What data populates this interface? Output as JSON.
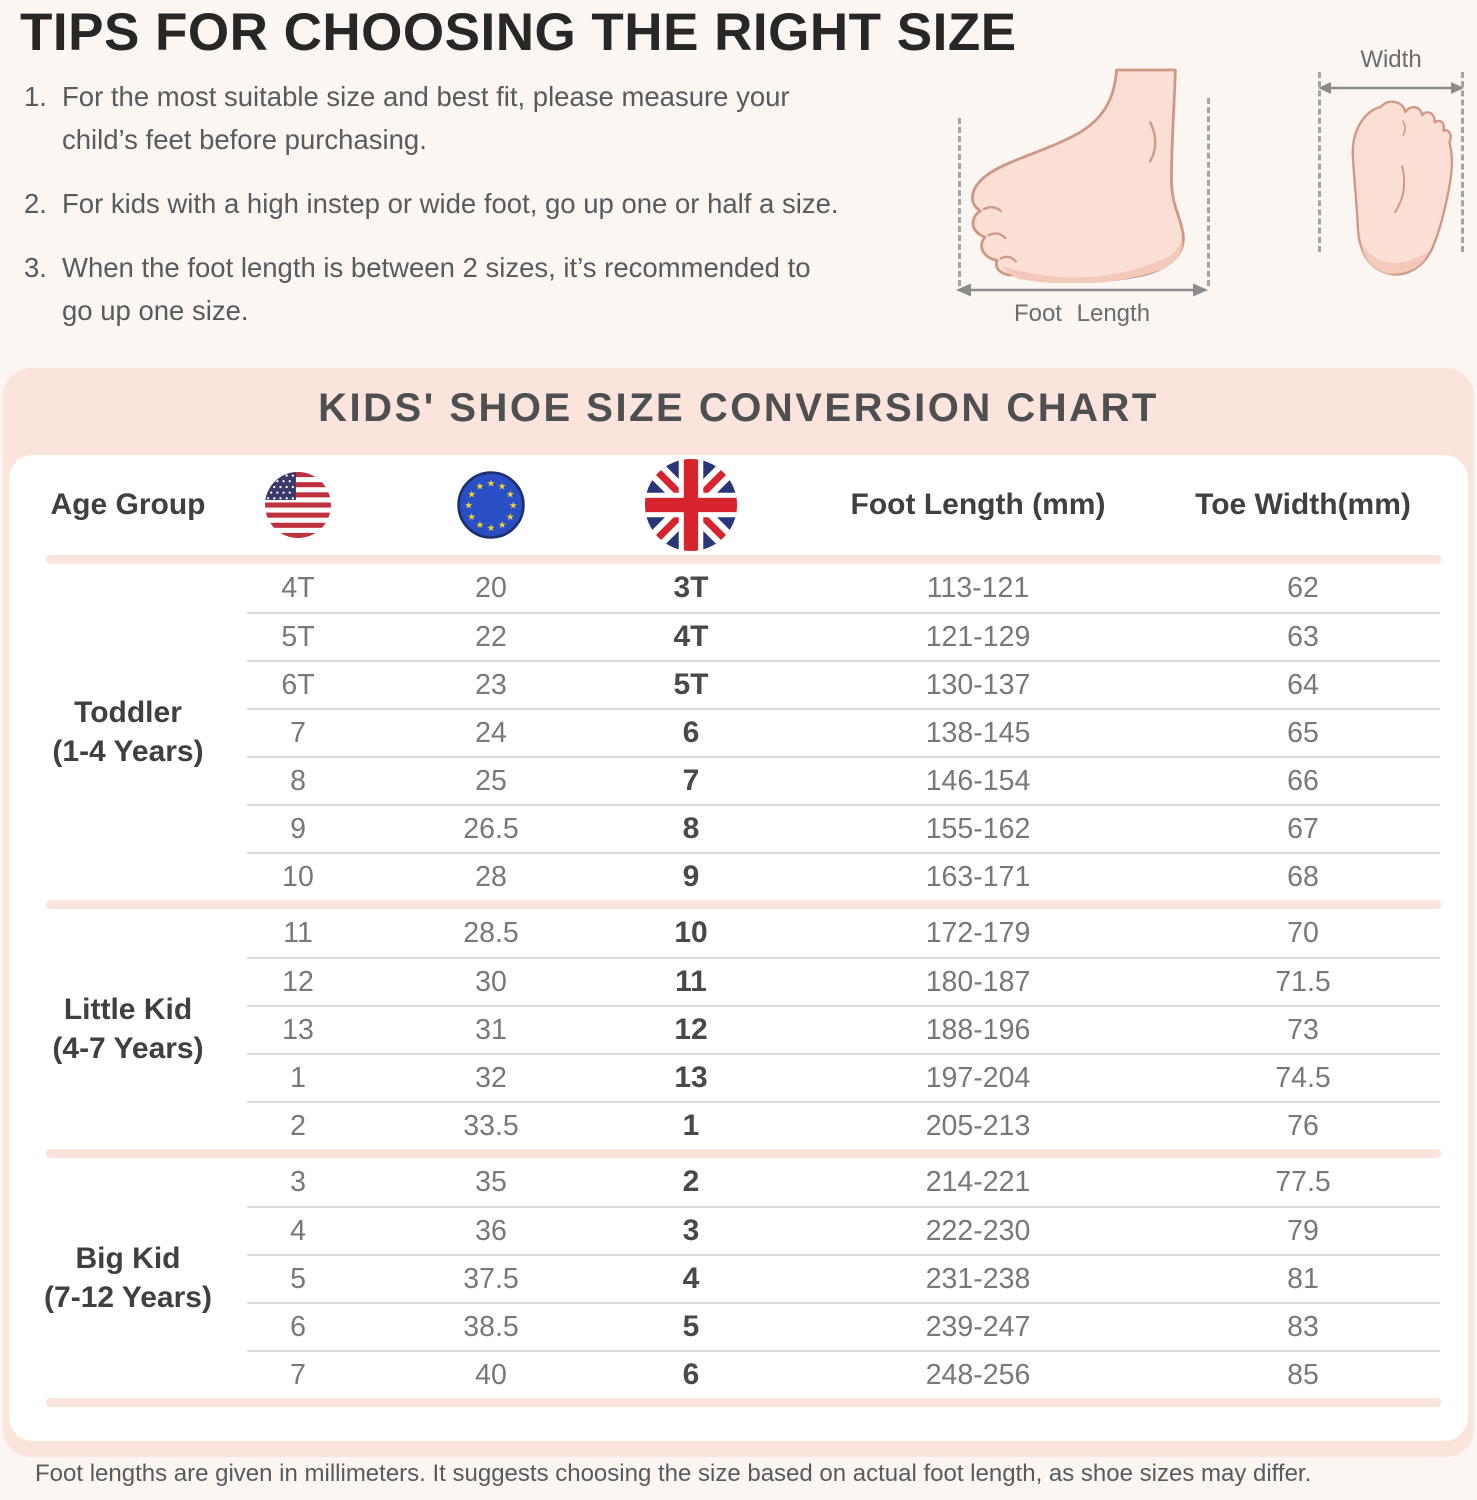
{
  "colors": {
    "page_bg": "#fcf6f2",
    "panel_pink": "#fae4dc",
    "uk_red": "#d6232e",
    "uk_blue": "#283577",
    "eu_blue": "#2a4fc4",
    "us_red": "#c0313f",
    "us_canton_blue": "#3a3a6a",
    "skin_fill": "#fbdfd5",
    "skin_outline": "#cf9886"
  },
  "tips": {
    "title": "TIPS FOR CHOOSING THE RIGHT SIZE",
    "items": [
      {
        "num": "1.",
        "text": "For the most suitable size and best fit, please measure your\nchild’s feet before purchasing."
      },
      {
        "num": "2.",
        "text": "For kids with a high instep or wide foot, go up one or half a size."
      },
      {
        "num": "3.",
        "text": "When the foot length is between 2 sizes, it’s recommended to\ngo up one size."
      }
    ]
  },
  "diagram": {
    "side_label": "Foot Length",
    "top_label": "Width"
  },
  "chart": {
    "title": "KIDS' SHOE SIZE CONVERSION CHART",
    "columns": {
      "age": "Age Group",
      "us_icon": "us-flag-icon",
      "eu_icon": "eu-flag-icon",
      "uk_icon": "uk-flag-icon",
      "foot": "Foot Length (mm)",
      "toe": "Toe Width(mm)"
    },
    "groups": [
      {
        "age_group": "Toddler",
        "age_range": "(1-4 Years)",
        "rows": [
          {
            "us": "4T",
            "eu": "20",
            "uk": "3T",
            "foot_length_mm": "113-121",
            "toe_width_mm": "62"
          },
          {
            "us": "5T",
            "eu": "22",
            "uk": "4T",
            "foot_length_mm": "121-129",
            "toe_width_mm": "63"
          },
          {
            "us": "6T",
            "eu": "23",
            "uk": "5T",
            "foot_length_mm": "130-137",
            "toe_width_mm": "64"
          },
          {
            "us": "7",
            "eu": "24",
            "uk": "6",
            "foot_length_mm": "138-145",
            "toe_width_mm": "65"
          },
          {
            "us": "8",
            "eu": "25",
            "uk": "7",
            "foot_length_mm": "146-154",
            "toe_width_mm": "66"
          },
          {
            "us": "9",
            "eu": "26.5",
            "uk": "8",
            "foot_length_mm": "155-162",
            "toe_width_mm": "67"
          },
          {
            "us": "10",
            "eu": "28",
            "uk": "9",
            "foot_length_mm": "163-171",
            "toe_width_mm": "68"
          }
        ]
      },
      {
        "age_group": "Little Kid",
        "age_range": "(4-7 Years)",
        "rows": [
          {
            "us": "11",
            "eu": "28.5",
            "uk": "10",
            "foot_length_mm": "172-179",
            "toe_width_mm": "70"
          },
          {
            "us": "12",
            "eu": "30",
            "uk": "11",
            "foot_length_mm": "180-187",
            "toe_width_mm": "71.5"
          },
          {
            "us": "13",
            "eu": "31",
            "uk": "12",
            "foot_length_mm": "188-196",
            "toe_width_mm": "73"
          },
          {
            "us": "1",
            "eu": "32",
            "uk": "13",
            "foot_length_mm": "197-204",
            "toe_width_mm": "74.5"
          },
          {
            "us": "2",
            "eu": "33.5",
            "uk": "1",
            "foot_length_mm": "205-213",
            "toe_width_mm": "76"
          }
        ]
      },
      {
        "age_group": "Big Kid",
        "age_range": "(7-12 Years)",
        "rows": [
          {
            "us": "3",
            "eu": "35",
            "uk": "2",
            "foot_length_mm": "214-221",
            "toe_width_mm": "77.5"
          },
          {
            "us": "4",
            "eu": "36",
            "uk": "3",
            "foot_length_mm": "222-230",
            "toe_width_mm": "79"
          },
          {
            "us": "5",
            "eu": "37.5",
            "uk": "4",
            "foot_length_mm": "231-238",
            "toe_width_mm": "81"
          },
          {
            "us": "6",
            "eu": "38.5",
            "uk": "5",
            "foot_length_mm": "239-247",
            "toe_width_mm": "83"
          },
          {
            "us": "7",
            "eu": "40",
            "uk": "6",
            "foot_length_mm": "248-256",
            "toe_width_mm": "85"
          }
        ]
      }
    ]
  },
  "footer": {
    "note": "Foot lengths are given in millimeters. It suggests choosing the size based on actual foot length, as shoe sizes may differ."
  }
}
